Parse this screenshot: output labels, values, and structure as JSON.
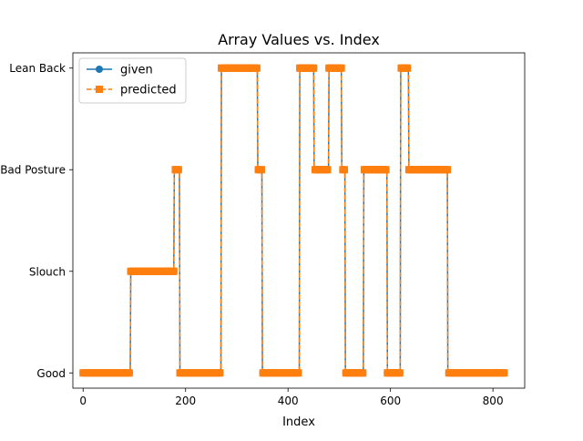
{
  "chart_data": {
    "type": "line",
    "title": "Array Values vs. Index",
    "xlabel": "Index",
    "ylabel": "",
    "xlim": [
      -20,
      862
    ],
    "ylim": [
      -0.15,
      3.15
    ],
    "x_ticks": [
      0,
      200,
      400,
      600,
      800
    ],
    "y_ticks": [
      0,
      1,
      2,
      3
    ],
    "y_tick_labels": [
      "Good",
      "Slouch",
      "Bad Posture",
      "Lean Back"
    ],
    "grid": false,
    "legend_position": "top-left",
    "series": [
      {
        "name": "given",
        "color": "#1f77b4",
        "marker": "circle",
        "linestyle": "solid",
        "segments": [
          [
            0,
            92,
            0
          ],
          [
            93,
            188,
            1
          ],
          [
            178,
            193,
            2
          ],
          [
            189,
            274,
            0
          ],
          [
            270,
            348,
            3
          ],
          [
            341,
            351,
            2
          ],
          [
            350,
            425,
            0
          ],
          [
            423,
            460,
            3
          ],
          [
            451,
            490,
            2
          ],
          [
            480,
            513,
            3
          ],
          [
            505,
            516,
            2
          ],
          [
            512,
            552,
            0
          ],
          [
            548,
            596,
            2
          ],
          [
            594,
            624,
            0
          ],
          [
            620,
            640,
            3
          ],
          [
            636,
            712,
            2
          ],
          [
            712,
            822,
            0
          ]
        ]
      },
      {
        "name": "predicted",
        "color": "#ff7f0e",
        "marker": "square",
        "linestyle": "dashed",
        "segments": [
          [
            0,
            92,
            0
          ],
          [
            93,
            188,
            1
          ],
          [
            178,
            193,
            2
          ],
          [
            189,
            274,
            0
          ],
          [
            270,
            348,
            3
          ],
          [
            341,
            351,
            2
          ],
          [
            350,
            425,
            0
          ],
          [
            423,
            460,
            3
          ],
          [
            451,
            490,
            2
          ],
          [
            480,
            513,
            3
          ],
          [
            505,
            516,
            2
          ],
          [
            512,
            552,
            0
          ],
          [
            548,
            596,
            2
          ],
          [
            594,
            624,
            0
          ],
          [
            620,
            640,
            3
          ],
          [
            636,
            712,
            2
          ],
          [
            712,
            822,
            0
          ]
        ]
      }
    ]
  }
}
